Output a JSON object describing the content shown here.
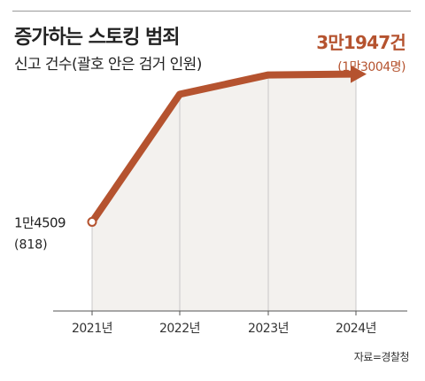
{
  "header": {
    "title": "증가하는 스토킹 범죄",
    "subtitle": "신고 건수(괄호 안은 검거 인원)"
  },
  "source": "자료=경찰청",
  "colors": {
    "line": "#b5532f",
    "area": "#f3f1ee",
    "grid": "#c8c8c8",
    "axis": "#555555",
    "highlight": "#b5532f"
  },
  "chart_data": {
    "type": "line",
    "categories": [
      "2021년",
      "2022년",
      "2023년",
      "2024년"
    ],
    "series": [
      {
        "name": "신고 건수",
        "values": [
          14509,
          29565,
          31841,
          31947
        ]
      }
    ],
    "arrests": [
      818,
      null,
      null,
      13004
    ],
    "labels": {
      "start": {
        "value": "1만4509",
        "sub": "(818)"
      },
      "end": {
        "value": "3만1947건",
        "sub": "(1만3004명)"
      }
    },
    "ylim": [
      4000,
      36500
    ],
    "grid": false,
    "xlabel": "",
    "ylabel": ""
  }
}
